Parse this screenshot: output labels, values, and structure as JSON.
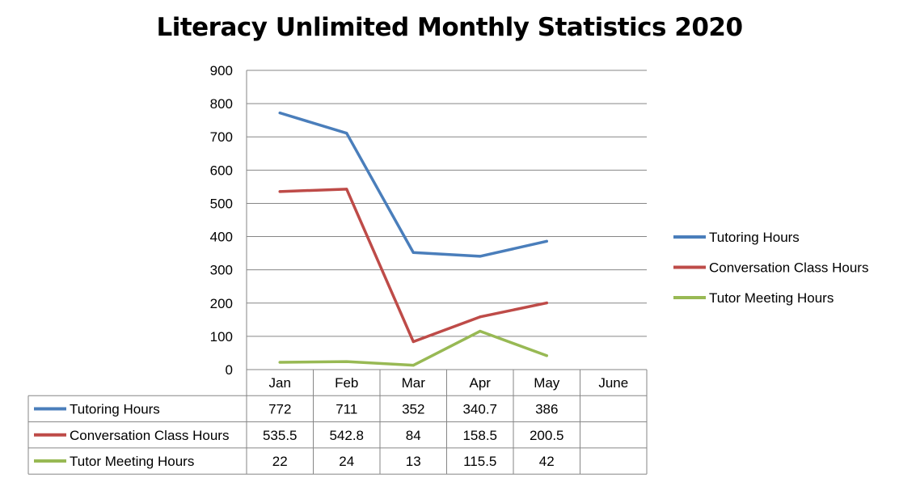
{
  "chart_data": {
    "type": "line",
    "title": "Literacy Unlimited Monthly Statistics 2020",
    "categories": [
      "Jan",
      "Feb",
      "Mar",
      "Apr",
      "May",
      "June"
    ],
    "yticks": [
      "0",
      "100",
      "200",
      "300",
      "400",
      "500",
      "600",
      "700",
      "800",
      "900"
    ],
    "ylim": [
      0,
      900
    ],
    "grid": true,
    "legend_position": "right",
    "series": [
      {
        "name": "Tutoring Hours",
        "color": "#4a7ebb",
        "values": [
          772,
          711,
          352,
          340.7,
          386,
          null
        ],
        "labels": [
          "772",
          "711",
          "352",
          "340.7",
          "386",
          ""
        ]
      },
      {
        "name": "Conversation Class Hours",
        "color": "#be4b48",
        "values": [
          535.5,
          542.8,
          84,
          158.5,
          200.5,
          null
        ],
        "labels": [
          "535.5",
          "542.8",
          "84",
          "158.5",
          "200.5",
          ""
        ]
      },
      {
        "name": "Tutor Meeting Hours",
        "color": "#98b954",
        "values": [
          22,
          24,
          13,
          115.5,
          42,
          null
        ],
        "labels": [
          "22",
          "24",
          "13",
          "115.5",
          "42",
          ""
        ]
      }
    ]
  }
}
